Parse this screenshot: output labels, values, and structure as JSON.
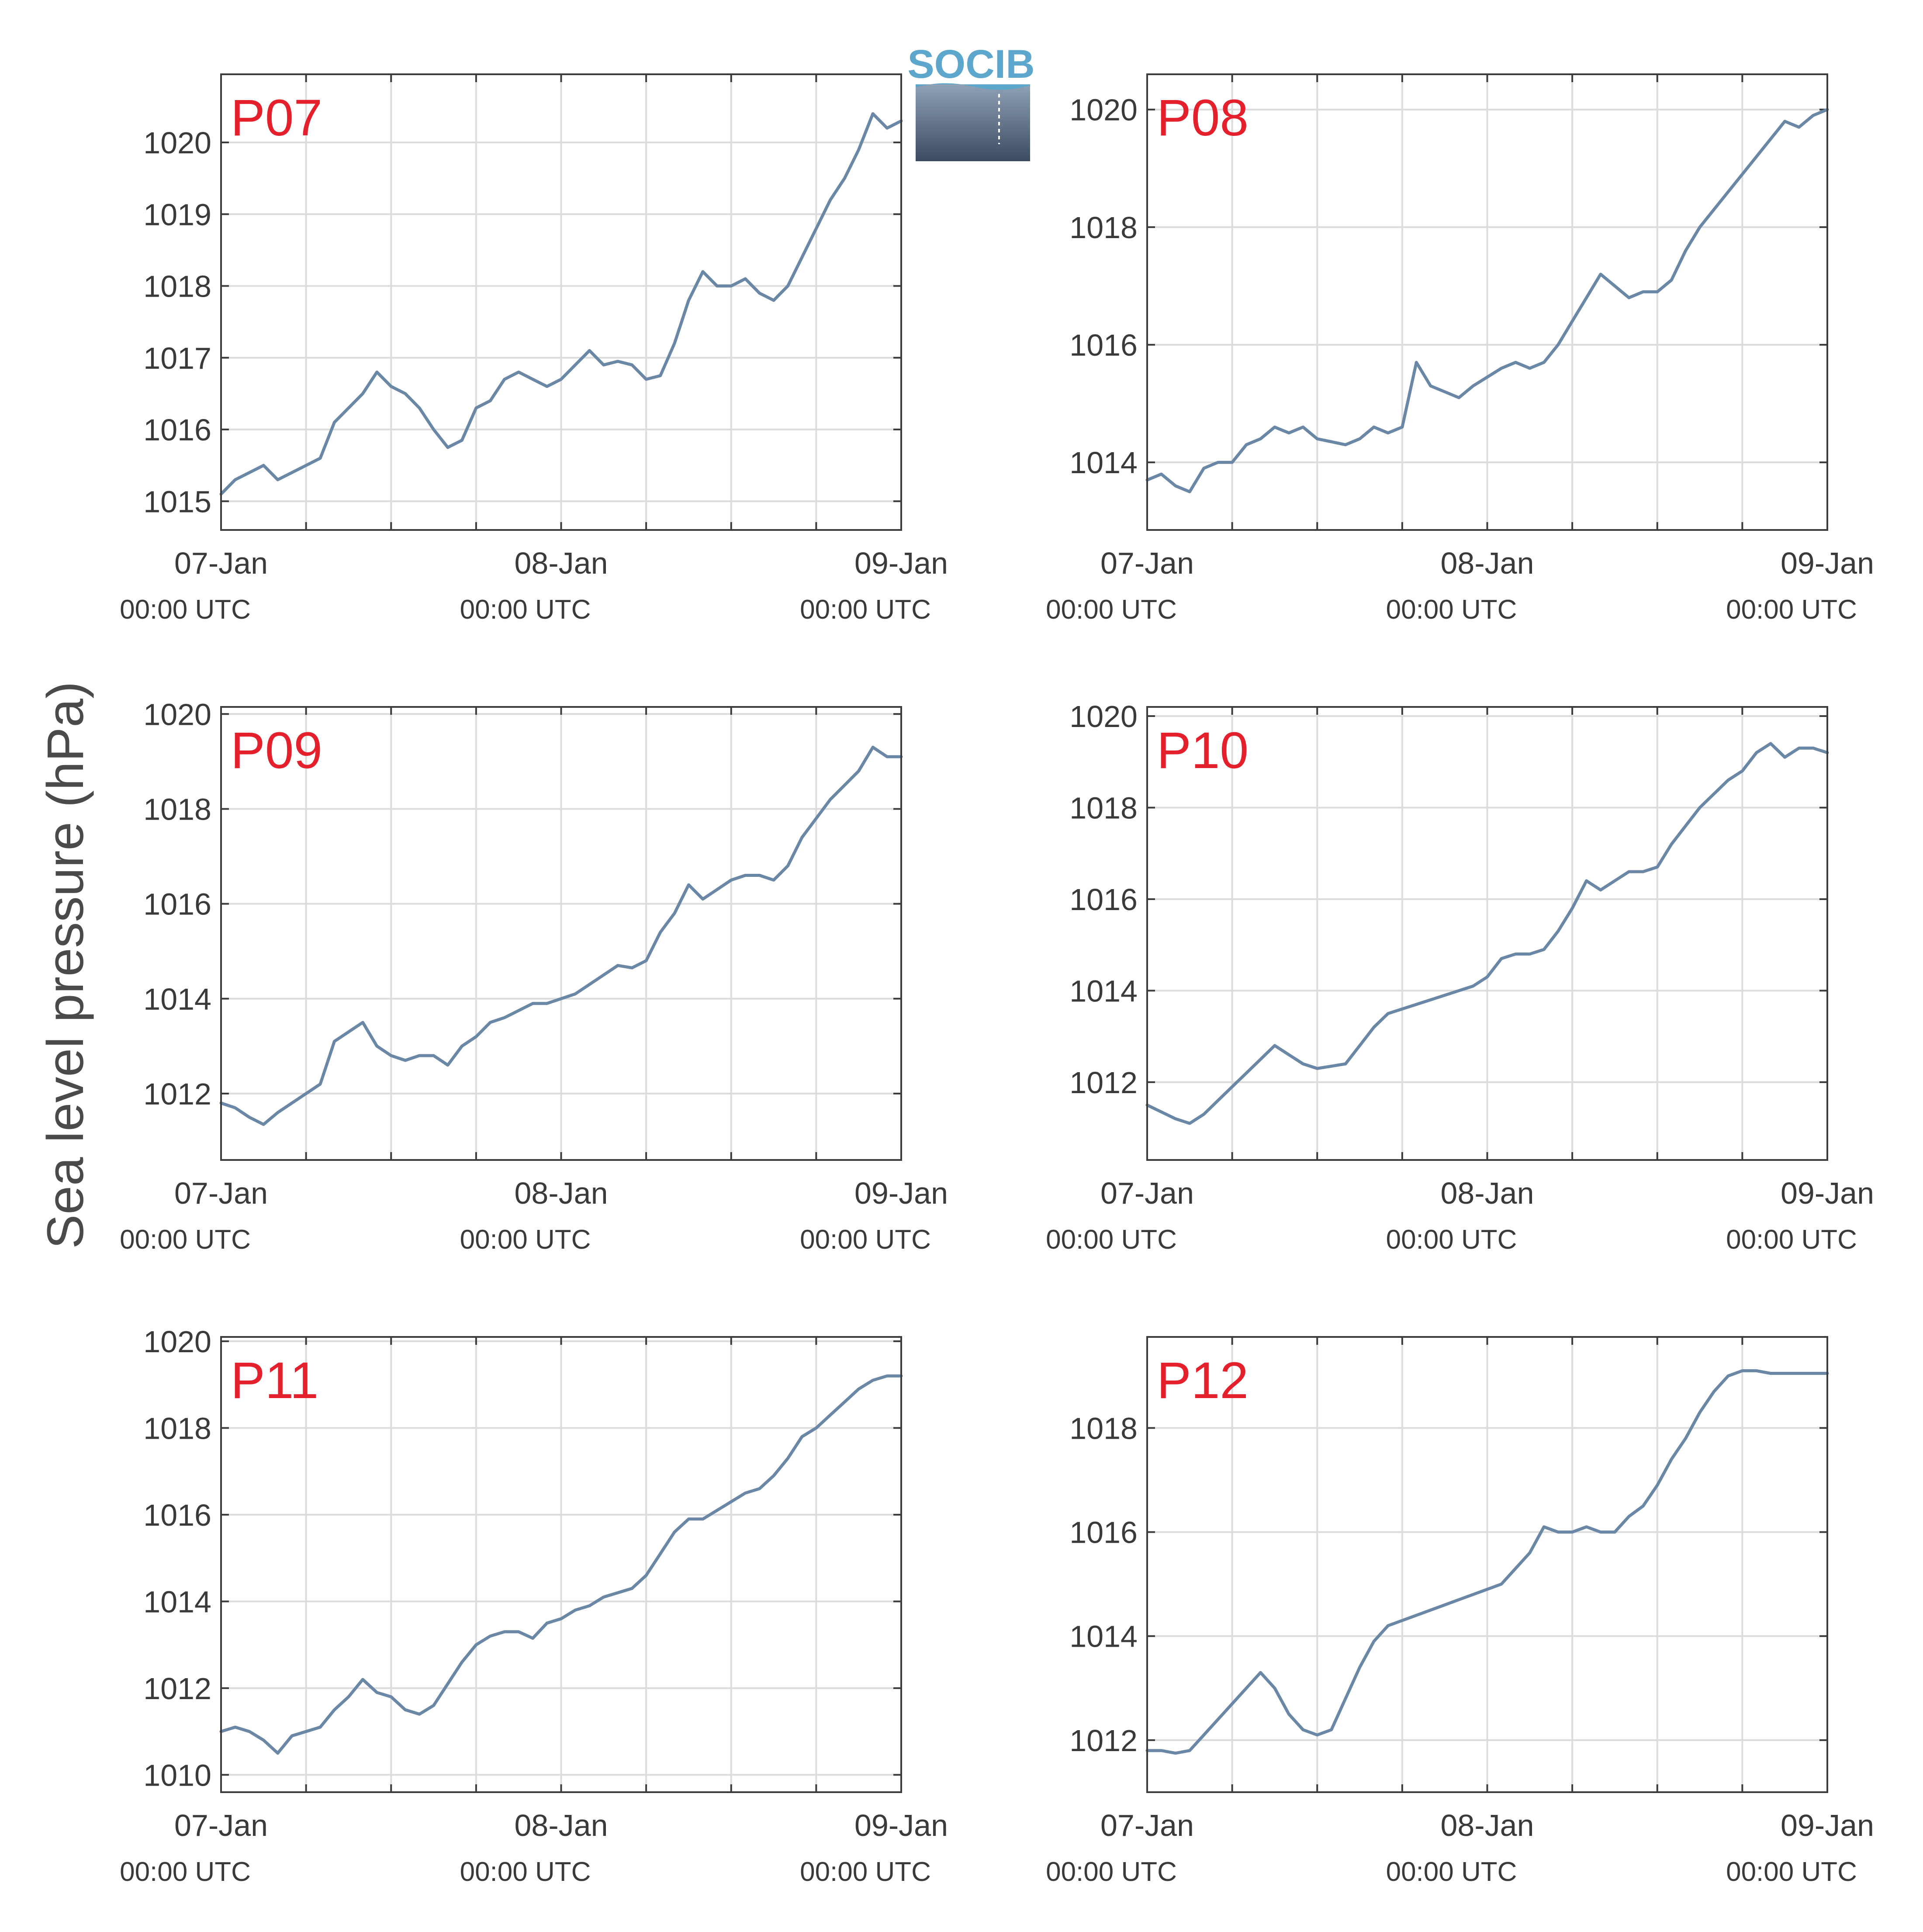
{
  "figure": {
    "ylabel": "Sea level pressure (hPa)",
    "logo_text": "SOCIB",
    "series_color": "#6b87a6",
    "panel_label_color": "#e3202b",
    "date_ticks": [
      "07-Jan",
      "08-Jan",
      "09-Jan"
    ],
    "time_sublabel": "00:00 UTC"
  },
  "chart_data": [
    {
      "type": "line",
      "title": "P07",
      "xlabel": "",
      "ylabel": "Sea level pressure (hPa)",
      "grid": true,
      "x_range": [
        "2019-01-07 00:00",
        "2019-01-09 00:00"
      ],
      "ylim": [
        1014.6,
        1020.95
      ],
      "yticks": [
        1015,
        1016,
        1017,
        1018,
        1019,
        1020
      ],
      "x_hours": [
        0,
        1,
        2,
        3,
        4,
        5,
        6,
        7,
        8,
        9,
        10,
        11,
        12,
        13,
        14,
        15,
        16,
        17,
        18,
        19,
        20,
        21,
        22,
        23,
        24,
        25,
        26,
        27,
        28,
        29,
        30,
        31,
        32,
        33,
        34,
        35,
        36,
        37,
        38,
        39,
        40,
        41,
        42,
        43,
        44,
        45,
        46,
        47,
        48
      ],
      "values": [
        1015.1,
        1015.3,
        1015.4,
        1015.5,
        1015.3,
        1015.4,
        1015.5,
        1015.6,
        1016.1,
        1016.3,
        1016.5,
        1016.8,
        1016.6,
        1016.5,
        1016.3,
        1016.0,
        1015.75,
        1015.85,
        1016.3,
        1016.4,
        1016.7,
        1016.8,
        1016.7,
        1016.6,
        1016.7,
        1016.9,
        1017.1,
        1016.9,
        1016.95,
        1016.9,
        1016.7,
        1016.75,
        1017.2,
        1017.8,
        1018.2,
        1018.0,
        1018.0,
        1018.1,
        1017.9,
        1017.8,
        1018.0,
        1018.4,
        1018.8,
        1019.2,
        1019.5,
        1019.9,
        1020.4,
        1020.2,
        1020.3
      ]
    },
    {
      "type": "line",
      "title": "P08",
      "xlabel": "",
      "ylabel": "Sea level pressure (hPa)",
      "grid": true,
      "x_range": [
        "2019-01-07 00:00",
        "2019-01-09 00:00"
      ],
      "ylim": [
        1012.85,
        1020.6
      ],
      "yticks": [
        1014,
        1016,
        1018,
        1020
      ],
      "x_hours": [
        0,
        1,
        2,
        3,
        4,
        5,
        6,
        7,
        8,
        9,
        10,
        11,
        12,
        13,
        14,
        15,
        16,
        17,
        18,
        19,
        20,
        21,
        22,
        23,
        24,
        25,
        26,
        27,
        28,
        29,
        30,
        31,
        32,
        33,
        34,
        35,
        36,
        37,
        38,
        39,
        40,
        41,
        42,
        43,
        44,
        45,
        46,
        47,
        48
      ],
      "values": [
        1013.7,
        1013.8,
        1013.6,
        1013.5,
        1013.9,
        1014.0,
        1014.0,
        1014.3,
        1014.4,
        1014.6,
        1014.5,
        1014.6,
        1014.4,
        1014.35,
        1014.3,
        1014.4,
        1014.6,
        1014.5,
        1014.6,
        1015.7,
        1015.3,
        1015.2,
        1015.1,
        1015.3,
        1015.45,
        1015.6,
        1015.7,
        1015.6,
        1015.7,
        1016.0,
        1016.4,
        1016.8,
        1017.2,
        1017.0,
        1016.8,
        1016.9,
        1016.9,
        1017.1,
        1017.6,
        1018.0,
        1018.3,
        1018.6,
        1018.9,
        1019.2,
        1019.5,
        1019.8,
        1019.7,
        1019.9,
        1020.0
      ]
    },
    {
      "type": "line",
      "title": "P09",
      "xlabel": "",
      "ylabel": "Sea level pressure (hPa)",
      "grid": true,
      "x_range": [
        "2019-01-07 00:00",
        "2019-01-09 00:00"
      ],
      "ylim": [
        1010.6,
        1020.15
      ],
      "yticks": [
        1012,
        1014,
        1016,
        1018,
        1020
      ],
      "x_hours": [
        0,
        1,
        2,
        3,
        4,
        5,
        6,
        7,
        8,
        9,
        10,
        11,
        12,
        13,
        14,
        15,
        16,
        17,
        18,
        19,
        20,
        21,
        22,
        23,
        24,
        25,
        26,
        27,
        28,
        29,
        30,
        31,
        32,
        33,
        34,
        35,
        36,
        37,
        38,
        39,
        40,
        41,
        42,
        43,
        44,
        45,
        46,
        47,
        48
      ],
      "values": [
        1011.8,
        1011.7,
        1011.5,
        1011.35,
        1011.6,
        1011.8,
        1012.0,
        1012.2,
        1013.1,
        1013.3,
        1013.5,
        1013.0,
        1012.8,
        1012.7,
        1012.8,
        1012.8,
        1012.6,
        1013.0,
        1013.2,
        1013.5,
        1013.6,
        1013.75,
        1013.9,
        1013.9,
        1014.0,
        1014.1,
        1014.3,
        1014.5,
        1014.7,
        1014.65,
        1014.8,
        1015.4,
        1015.8,
        1016.4,
        1016.1,
        1016.3,
        1016.5,
        1016.6,
        1016.6,
        1016.5,
        1016.8,
        1017.4,
        1017.8,
        1018.2,
        1018.5,
        1018.8,
        1019.3,
        1019.1,
        1019.1
      ]
    },
    {
      "type": "line",
      "title": "P10",
      "xlabel": "",
      "ylabel": "Sea level pressure (hPa)",
      "grid": true,
      "x_range": [
        "2019-01-07 00:00",
        "2019-01-09 00:00"
      ],
      "ylim": [
        1010.3,
        1020.2
      ],
      "yticks": [
        1012,
        1014,
        1016,
        1018,
        1020
      ],
      "x_hours": [
        0,
        1,
        2,
        3,
        4,
        5,
        6,
        7,
        8,
        9,
        10,
        11,
        12,
        13,
        14,
        15,
        16,
        17,
        18,
        19,
        20,
        21,
        22,
        23,
        24,
        25,
        26,
        27,
        28,
        29,
        30,
        31,
        32,
        33,
        34,
        35,
        36,
        37,
        38,
        39,
        40,
        41,
        42,
        43,
        44,
        45,
        46,
        47,
        48
      ],
      "values": [
        1011.5,
        1011.35,
        1011.2,
        1011.1,
        1011.3,
        1011.6,
        1011.9,
        1012.2,
        1012.5,
        1012.8,
        1012.6,
        1012.4,
        1012.3,
        1012.35,
        1012.4,
        1012.8,
        1013.2,
        1013.5,
        1013.6,
        1013.7,
        1013.8,
        1013.9,
        1014.0,
        1014.1,
        1014.3,
        1014.7,
        1014.8,
        1014.8,
        1014.9,
        1015.3,
        1015.8,
        1016.4,
        1016.2,
        1016.4,
        1016.6,
        1016.6,
        1016.7,
        1017.2,
        1017.6,
        1018.0,
        1018.3,
        1018.6,
        1018.8,
        1019.2,
        1019.4,
        1019.1,
        1019.3,
        1019.3,
        1019.2
      ]
    },
    {
      "type": "line",
      "title": "P11",
      "xlabel": "",
      "ylabel": "Sea level pressure (hPa)",
      "grid": true,
      "x_range": [
        "2019-01-07 00:00",
        "2019-01-09 00:00"
      ],
      "ylim": [
        1009.6,
        1020.1
      ],
      "yticks": [
        1010,
        1012,
        1014,
        1016,
        1018,
        1020
      ],
      "x_hours": [
        0,
        1,
        2,
        3,
        4,
        5,
        6,
        7,
        8,
        9,
        10,
        11,
        12,
        13,
        14,
        15,
        16,
        17,
        18,
        19,
        20,
        21,
        22,
        23,
        24,
        25,
        26,
        27,
        28,
        29,
        30,
        31,
        32,
        33,
        34,
        35,
        36,
        37,
        38,
        39,
        40,
        41,
        42,
        43,
        44,
        45,
        46,
        47,
        48
      ],
      "values": [
        1011.0,
        1011.1,
        1011.0,
        1010.8,
        1010.5,
        1010.9,
        1011.0,
        1011.1,
        1011.5,
        1011.8,
        1012.2,
        1011.9,
        1011.8,
        1011.5,
        1011.4,
        1011.6,
        1012.1,
        1012.6,
        1013.0,
        1013.2,
        1013.3,
        1013.3,
        1013.15,
        1013.5,
        1013.6,
        1013.8,
        1013.9,
        1014.1,
        1014.2,
        1014.3,
        1014.6,
        1015.1,
        1015.6,
        1015.9,
        1015.9,
        1016.1,
        1016.3,
        1016.5,
        1016.6,
        1016.9,
        1017.3,
        1017.8,
        1018.0,
        1018.3,
        1018.6,
        1018.9,
        1019.1,
        1019.2,
        1019.2
      ]
    },
    {
      "type": "line",
      "title": "P12",
      "xlabel": "",
      "ylabel": "Sea level pressure (hPa)",
      "grid": true,
      "x_range": [
        "2019-01-07 00:00",
        "2019-01-09 00:00"
      ],
      "ylim": [
        1011.0,
        1019.75
      ],
      "yticks": [
        1012,
        1014,
        1016,
        1018
      ],
      "x_hours": [
        0,
        1,
        2,
        3,
        4,
        5,
        6,
        7,
        8,
        9,
        10,
        11,
        12,
        13,
        14,
        15,
        16,
        17,
        18,
        19,
        20,
        21,
        22,
        23,
        24,
        25,
        26,
        27,
        28,
        29,
        30,
        31,
        32,
        33,
        34,
        35,
        36,
        37,
        38,
        39,
        40,
        41,
        42,
        43,
        44,
        45,
        46,
        47,
        48
      ],
      "values": [
        1011.8,
        1011.8,
        1011.75,
        1011.8,
        1012.1,
        1012.4,
        1012.7,
        1013.0,
        1013.3,
        1013.0,
        1012.5,
        1012.2,
        1012.1,
        1012.2,
        1012.8,
        1013.4,
        1013.9,
        1014.2,
        1014.3,
        1014.4,
        1014.5,
        1014.6,
        1014.7,
        1014.8,
        1014.9,
        1015.0,
        1015.3,
        1015.6,
        1016.1,
        1016.0,
        1016.0,
        1016.1,
        1016.0,
        1016.0,
        1016.3,
        1016.5,
        1016.9,
        1017.4,
        1017.8,
        1018.3,
        1018.7,
        1019.0,
        1019.1,
        1019.1,
        1019.05,
        1019.05,
        1019.05,
        1019.05,
        1019.05
      ]
    }
  ]
}
